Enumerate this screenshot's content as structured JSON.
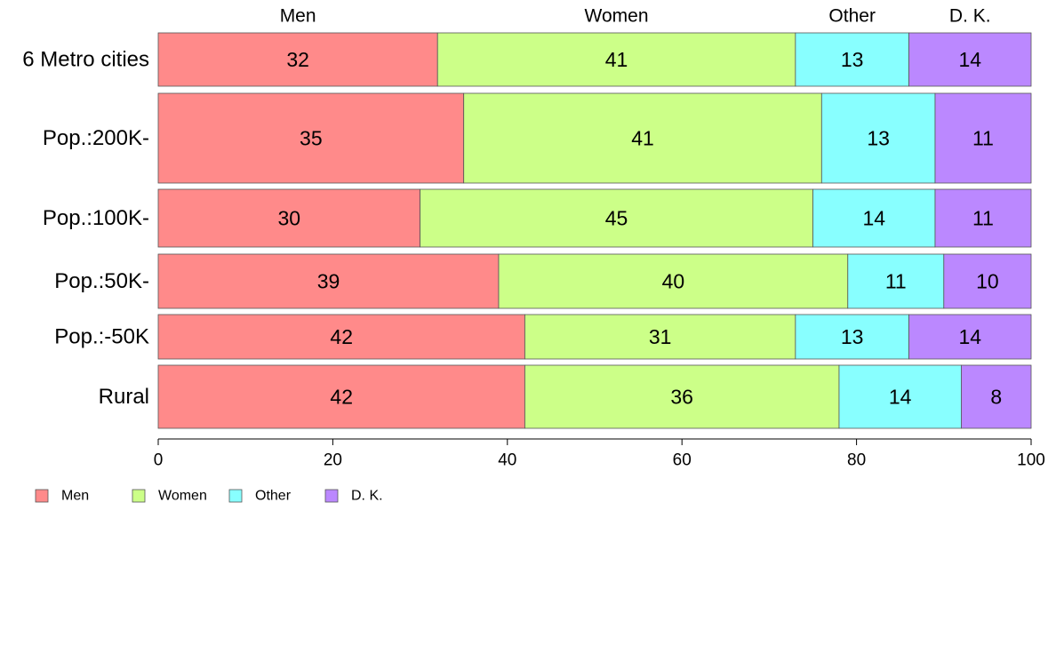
{
  "chart_data": {
    "type": "bar",
    "orientation": "horizontal",
    "stacked": true,
    "categories": [
      "6 Metro cities",
      "Pop.:200K-",
      "Pop.:100K-",
      "Pop.:50K-",
      "Pop.:-50K",
      "Rural"
    ],
    "series": [
      {
        "name": "Men",
        "color": "#ff8a8a",
        "values": [
          32,
          35,
          30,
          39,
          42,
          42
        ]
      },
      {
        "name": "Women",
        "color": "#ccff88",
        "values": [
          41,
          41,
          45,
          40,
          31,
          36
        ]
      },
      {
        "name": "Other",
        "color": "#88ffff",
        "values": [
          13,
          13,
          14,
          11,
          13,
          14
        ]
      },
      {
        "name": "D. K.",
        "color": "#bb88ff",
        "values": [
          14,
          11,
          11,
          10,
          14,
          8
        ]
      }
    ],
    "top_labels": [
      "Men",
      "Women",
      "Other",
      "D. K."
    ],
    "xlim": [
      0,
      100
    ],
    "x_ticks": [
      0,
      20,
      40,
      60,
      80,
      100
    ],
    "title": "",
    "xlabel": "",
    "ylabel": "",
    "grid": false,
    "legend_position": "bottom-left"
  }
}
